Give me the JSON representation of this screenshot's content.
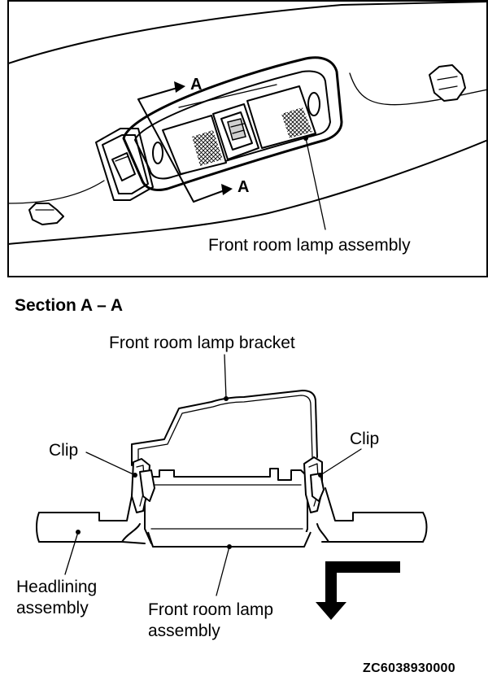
{
  "top_view": {
    "section_marker_upper": "A",
    "section_marker_lower": "A",
    "lamp_label": "Front room lamp assembly"
  },
  "section_view": {
    "title": "Section A – A",
    "bracket_label": "Front room lamp bracket",
    "clip_left_label": "Clip",
    "clip_right_label": "Clip",
    "headlining_label_line1": "Headlining",
    "headlining_label_line2": "assembly",
    "lamp_label_line1": "Front room lamp",
    "lamp_label_line2": "assembly"
  },
  "figure_code": "ZC6038930000"
}
